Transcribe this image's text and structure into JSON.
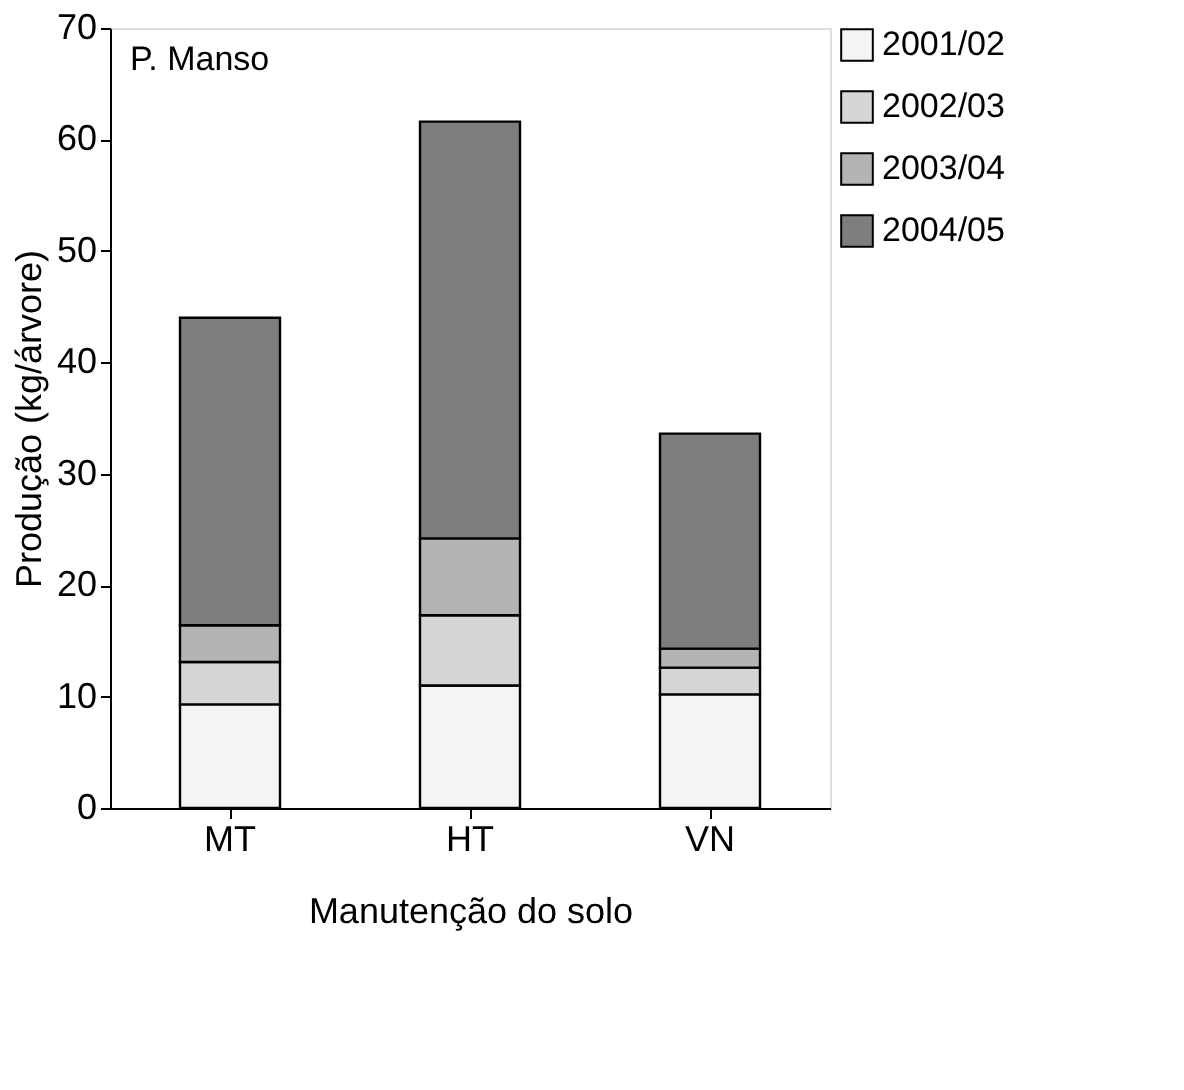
{
  "chart_data": {
    "type": "bar",
    "stacked": true,
    "xlabel": "Manutenção do solo",
    "ylabel": "Produção (kg/árvore)",
    "categories": [
      "MT",
      "HT",
      "VN"
    ],
    "series": [
      {
        "name": "2001/02",
        "color": "#f4f4f4",
        "values": [
          9.3,
          11.0,
          10.2
        ]
      },
      {
        "name": "2002/03",
        "color": "#d6d6d6",
        "values": [
          3.8,
          6.3,
          2.4
        ]
      },
      {
        "name": "2003/04",
        "color": "#b4b4b4",
        "values": [
          3.3,
          6.9,
          1.7
        ]
      },
      {
        "name": "2004/05",
        "color": "#7e7e7e",
        "values": [
          27.6,
          37.4,
          19.3
        ]
      }
    ],
    "ylim": [
      0,
      70
    ],
    "yticks": [
      0,
      10,
      20,
      30,
      40,
      50,
      60,
      70
    ],
    "grid": false,
    "legend": "top right",
    "annotations": [
      "P. Manso"
    ]
  }
}
